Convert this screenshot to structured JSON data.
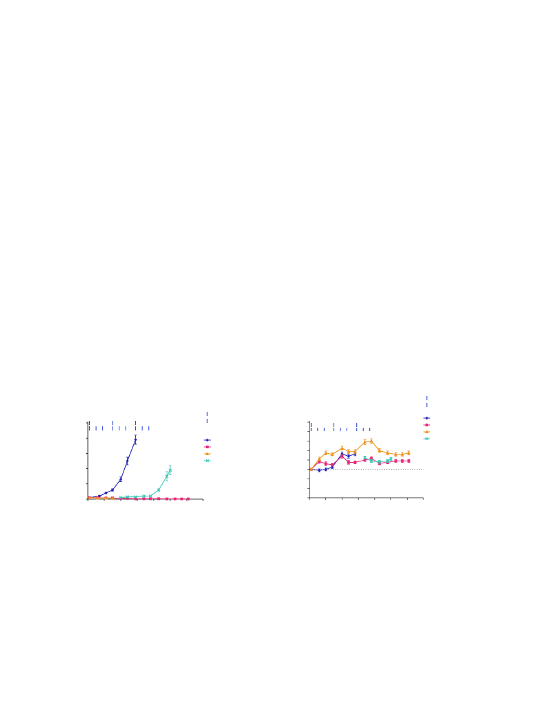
{
  "colors": {
    "blue": "#2020b8",
    "pink": "#e8287a",
    "orange": "#f0921e",
    "teal": "#3cc8b4",
    "dose": "#1a3ad0"
  },
  "chart_data": [
    {
      "type": "line",
      "title": "",
      "xlabel": "",
      "ylabel": "",
      "xlim": [
        0,
        70
      ],
      "ylim": [
        0,
        100
      ],
      "x_ticks": [
        0,
        10,
        20,
        30,
        40,
        50,
        60,
        70
      ],
      "y_ticks": [
        0,
        20,
        40,
        60,
        80,
        100
      ],
      "dose_marks": {
        "tall": [
          1,
          15,
          29
        ],
        "short": [
          1,
          5,
          9,
          15,
          19,
          23,
          29,
          33,
          37
        ]
      },
      "legend": {
        "position": "right",
        "entries": []
      },
      "series": [
        {
          "color_key": "blue",
          "marker": "diamond",
          "x": [
            1,
            7,
            11,
            15,
            20,
            24,
            29
          ],
          "y": [
            2,
            4,
            8,
            12,
            26,
            50,
            78
          ],
          "err": [
            0.5,
            0.8,
            1,
            1.5,
            3,
            5,
            6
          ]
        },
        {
          "color_key": "pink",
          "marker": "square",
          "x": [
            1,
            6,
            11,
            15,
            20,
            24,
            29,
            34,
            38,
            43,
            48,
            53,
            57,
            61
          ],
          "y": [
            2,
            2,
            1.5,
            1.5,
            1,
            1,
            0.5,
            0.5,
            0.5,
            0.5,
            0.3,
            0.3,
            0.3,
            0.3
          ],
          "err": [
            0.3,
            0.3,
            0.3,
            0.3,
            0.2,
            0.2,
            0.2,
            0.2,
            0.2,
            0.2,
            0.2,
            0.2,
            0.2,
            0.2
          ]
        },
        {
          "color_key": "orange",
          "marker": "triangle",
          "x": [
            1,
            6,
            11,
            15
          ],
          "y": [
            2,
            1.5,
            1.5,
            1
          ],
          "err": [
            0.3,
            0.3,
            0.3,
            0.3
          ]
        },
        {
          "color_key": "teal",
          "marker": "cross",
          "x": [
            20,
            24,
            29,
            34,
            38,
            43,
            48,
            50
          ],
          "y": [
            2,
            3,
            3,
            4,
            4,
            12,
            30,
            38
          ],
          "err": [
            0.3,
            0.3,
            0.3,
            0.5,
            0.5,
            1.5,
            6,
            6
          ]
        }
      ]
    },
    {
      "type": "line",
      "title": "",
      "xlabel": "",
      "ylabel": "",
      "xlim": [
        0,
        70
      ],
      "ylim": [
        -60,
        100
      ],
      "x_ticks": [
        0,
        10,
        20,
        30,
        40,
        50,
        60,
        70
      ],
      "y_ticks": [
        -60,
        -40,
        -20,
        0,
        20,
        40,
        60,
        80,
        100
      ],
      "reference_line": 0,
      "dose_marks": {
        "tall": [
          1,
          15,
          29
        ],
        "short": [
          1,
          5,
          9,
          15,
          19,
          23,
          29,
          33,
          37
        ]
      },
      "legend": {
        "position": "top-right",
        "entries": []
      },
      "series": [
        {
          "color_key": "blue",
          "marker": "diamond",
          "x": [
            1,
            6,
            10,
            14,
            20,
            24,
            28
          ],
          "y": [
            0,
            -2,
            0,
            5,
            33,
            28,
            33
          ],
          "err": [
            2,
            3,
            3,
            3,
            4,
            4,
            4
          ]
        },
        {
          "color_key": "pink",
          "marker": "square",
          "x": [
            1,
            6,
            10,
            14,
            20,
            24,
            28,
            34,
            38,
            43,
            48,
            53,
            57,
            61
          ],
          "y": [
            0,
            17,
            12,
            10,
            28,
            15,
            15,
            20,
            23,
            13,
            15,
            18,
            18,
            18
          ],
          "err": [
            2,
            4,
            4,
            3,
            4,
            4,
            3,
            3,
            4,
            3,
            3,
            3,
            3,
            3
          ]
        },
        {
          "color_key": "orange",
          "marker": "triangle",
          "x": [
            1,
            6,
            10,
            14,
            20,
            24,
            28,
            34,
            38,
            43,
            48,
            53,
            57,
            61
          ],
          "y": [
            0,
            22,
            35,
            32,
            45,
            38,
            38,
            58,
            60,
            40,
            35,
            32,
            32,
            35
          ],
          "err": [
            2,
            4,
            4,
            3,
            4,
            4,
            4,
            5,
            5,
            4,
            4,
            4,
            4,
            4
          ]
        },
        {
          "color_key": "teal",
          "marker": "cross",
          "x": [
            34,
            38,
            43,
            48,
            50
          ],
          "y": [
            25,
            18,
            16,
            18,
            22
          ],
          "err": [
            3,
            3,
            3,
            3,
            3
          ]
        }
      ]
    }
  ]
}
